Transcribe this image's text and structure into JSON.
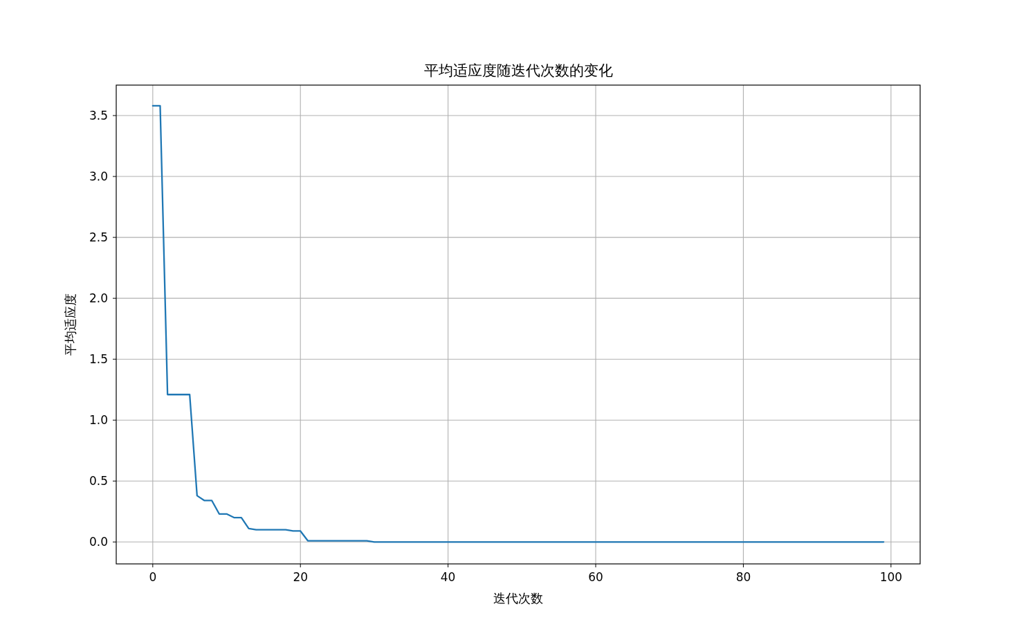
{
  "chart_data": {
    "type": "line",
    "title": "平均适应度随迭代次数的变化",
    "xlabel": "迭代次数",
    "ylabel": "平均适应度",
    "x": [
      0,
      1,
      2,
      3,
      4,
      5,
      6,
      7,
      8,
      9,
      10,
      11,
      12,
      13,
      14,
      15,
      16,
      17,
      18,
      19,
      20,
      21,
      22,
      23,
      24,
      25,
      26,
      27,
      28,
      29,
      30,
      31,
      32,
      33,
      34,
      35,
      36,
      37,
      38,
      39,
      40,
      41,
      42,
      43,
      44,
      45,
      46,
      47,
      48,
      49,
      50,
      51,
      52,
      53,
      54,
      55,
      56,
      57,
      58,
      59,
      60,
      61,
      62,
      63,
      64,
      65,
      66,
      67,
      68,
      69,
      70,
      71,
      72,
      73,
      74,
      75,
      76,
      77,
      78,
      79,
      80,
      81,
      82,
      83,
      84,
      85,
      86,
      87,
      88,
      89,
      90,
      91,
      92,
      93,
      94,
      95,
      96,
      97,
      98,
      99
    ],
    "series": [
      {
        "color": "#1f77b4",
        "values": [
          3.58,
          3.58,
          1.21,
          1.21,
          1.21,
          1.21,
          0.38,
          0.34,
          0.34,
          0.23,
          0.23,
          0.2,
          0.2,
          0.11,
          0.1,
          0.1,
          0.1,
          0.1,
          0.1,
          0.09,
          0.09,
          0.01,
          0.01,
          0.01,
          0.01,
          0.01,
          0.01,
          0.01,
          0.01,
          0.01,
          0,
          0,
          0,
          0,
          0,
          0,
          0,
          0,
          0,
          0,
          0,
          0,
          0,
          0,
          0,
          0,
          0,
          0,
          0,
          0,
          0,
          0,
          0,
          0,
          0,
          0,
          0,
          0,
          0,
          0,
          0,
          0,
          0,
          0,
          0,
          0,
          0,
          0,
          0,
          0,
          0,
          0,
          0,
          0,
          0,
          0,
          0,
          0,
          0,
          0,
          0,
          0,
          0,
          0,
          0,
          0,
          0,
          0,
          0,
          0,
          0,
          0,
          0,
          0,
          0,
          0,
          0,
          0,
          0,
          0
        ]
      }
    ],
    "xlim": [
      -4.95,
      103.95
    ],
    "ylim": [
      -0.18,
      3.75
    ],
    "xticks": [
      0,
      20,
      40,
      60,
      80,
      100
    ],
    "yticks": [
      {
        "value": 0,
        "label": "0.0"
      },
      0.5,
      {
        "value": 1,
        "label": "1.0"
      },
      1.5,
      {
        "value": 2,
        "label": "2.0"
      },
      2.5,
      {
        "value": 3,
        "label": "3.0"
      },
      3.5
    ],
    "grid": true,
    "marker": "none",
    "line_style": "solid"
  }
}
